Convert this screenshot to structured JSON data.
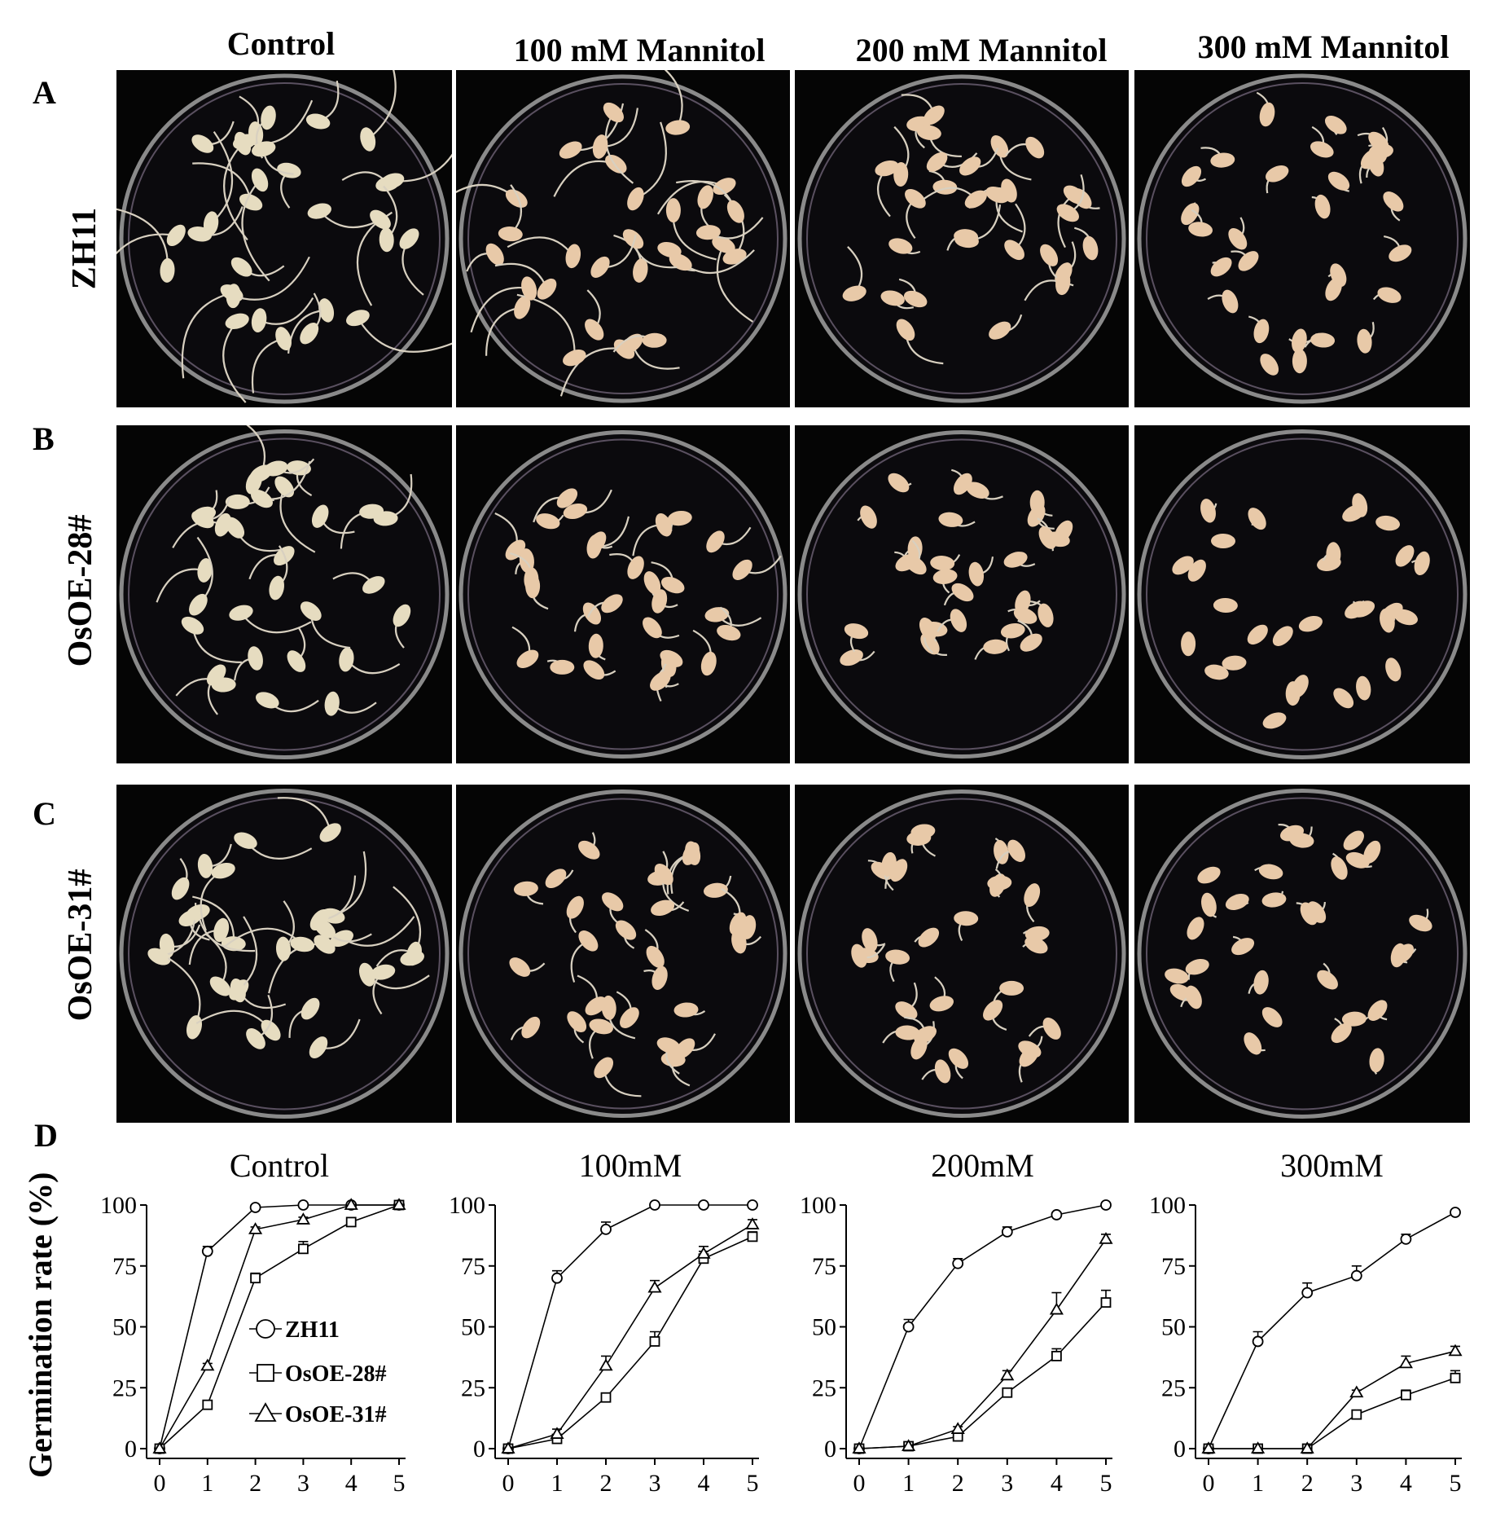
{
  "figure": {
    "column_titles": [
      "Control",
      "100 mM Mannitol",
      "200 mM Mannitol",
      "300 mM Mannitol"
    ],
    "rows": [
      {
        "letter": "A",
        "label": "ZH11"
      },
      {
        "letter": "B",
        "label": "OsOE-28#"
      },
      {
        "letter": "C",
        "label": "OsOE-31#"
      }
    ],
    "panel_d_letter": "D",
    "y_axis_title": "Germination rate (%)",
    "colors": {
      "background_photo": "#050505",
      "dish_rim": "#8a8a8a",
      "seed": "#e8c9a8",
      "seed_control": "#e6dcc0",
      "sprout": "#d8d0c0",
      "line": "#000000"
    }
  },
  "chart_data": [
    {
      "type": "line",
      "title": "Control",
      "x": [
        0,
        1,
        2,
        3,
        4,
        5
      ],
      "xlim": [
        0,
        5
      ],
      "ylim": [
        0,
        100
      ],
      "yticks": [
        0,
        25,
        50,
        75,
        100
      ],
      "xticks": [
        0,
        1,
        2,
        3,
        4,
        5
      ],
      "grid": false,
      "legend": {
        "placement": "center-right"
      },
      "series": [
        {
          "name": "ZH11",
          "marker": "circle",
          "values": [
            0,
            81,
            99,
            100,
            100,
            100
          ],
          "errors": [
            0,
            2,
            1,
            0,
            0,
            0
          ]
        },
        {
          "name": "OsOE-28#",
          "marker": "square",
          "values": [
            0,
            18,
            70,
            82,
            93,
            100
          ],
          "errors": [
            0,
            1,
            2,
            3,
            1,
            0
          ]
        },
        {
          "name": "OsOE-31#",
          "marker": "triangle",
          "values": [
            0,
            34,
            90,
            94,
            100,
            100
          ],
          "errors": [
            0,
            1,
            1,
            1,
            0,
            0
          ]
        }
      ]
    },
    {
      "type": "line",
      "title": "100mM",
      "x": [
        0,
        1,
        2,
        3,
        4,
        5
      ],
      "xlim": [
        0,
        5
      ],
      "ylim": [
        0,
        100
      ],
      "yticks": [
        0,
        25,
        50,
        75,
        100
      ],
      "xticks": [
        0,
        1,
        2,
        3,
        4,
        5
      ],
      "grid": false,
      "series": [
        {
          "name": "ZH11",
          "marker": "circle",
          "values": [
            0,
            70,
            90,
            100,
            100,
            100
          ],
          "errors": [
            0,
            3,
            3,
            0,
            0,
            0
          ]
        },
        {
          "name": "OsOE-28#",
          "marker": "square",
          "values": [
            0,
            4,
            21,
            44,
            78,
            87
          ],
          "errors": [
            0,
            1,
            1,
            4,
            3,
            2
          ]
        },
        {
          "name": "OsOE-31#",
          "marker": "triangle",
          "values": [
            0,
            6,
            34,
            66,
            80,
            92
          ],
          "errors": [
            0,
            2,
            4,
            3,
            3,
            2
          ]
        }
      ]
    },
    {
      "type": "line",
      "title": "200mM",
      "x": [
        0,
        1,
        2,
        3,
        4,
        5
      ],
      "xlim": [
        0,
        5
      ],
      "ylim": [
        0,
        100
      ],
      "yticks": [
        0,
        25,
        50,
        75,
        100
      ],
      "xticks": [
        0,
        1,
        2,
        3,
        4,
        5
      ],
      "grid": false,
      "series": [
        {
          "name": "ZH11",
          "marker": "circle",
          "values": [
            0,
            50,
            76,
            89,
            96,
            100
          ],
          "errors": [
            0,
            3,
            2,
            2,
            1,
            1
          ]
        },
        {
          "name": "OsOE-28#",
          "marker": "square",
          "values": [
            0,
            1,
            5,
            23,
            38,
            60
          ],
          "errors": [
            0,
            1,
            1,
            1,
            3,
            5
          ]
        },
        {
          "name": "OsOE-31#",
          "marker": "triangle",
          "values": [
            0,
            1,
            8,
            30,
            57,
            86
          ],
          "errors": [
            0,
            0,
            1,
            2,
            7,
            2
          ]
        }
      ]
    },
    {
      "type": "line",
      "title": "300mM",
      "x": [
        0,
        1,
        2,
        3,
        4,
        5
      ],
      "xlim": [
        0,
        5
      ],
      "ylim": [
        0,
        100
      ],
      "yticks": [
        0,
        25,
        50,
        75,
        100
      ],
      "xticks": [
        0,
        1,
        2,
        3,
        4,
        5
      ],
      "grid": false,
      "series": [
        {
          "name": "ZH11",
          "marker": "circle",
          "values": [
            0,
            44,
            64,
            71,
            86,
            97
          ],
          "errors": [
            0,
            4,
            4,
            4,
            2,
            1
          ]
        },
        {
          "name": "OsOE-28#",
          "marker": "square",
          "values": [
            0,
            0,
            0,
            14,
            22,
            29
          ],
          "errors": [
            0,
            0,
            0,
            1,
            2,
            3
          ]
        },
        {
          "name": "OsOE-31#",
          "marker": "triangle",
          "values": [
            0,
            0,
            0,
            23,
            35,
            40
          ],
          "errors": [
            0,
            0,
            0,
            1,
            3,
            2
          ]
        }
      ]
    }
  ]
}
